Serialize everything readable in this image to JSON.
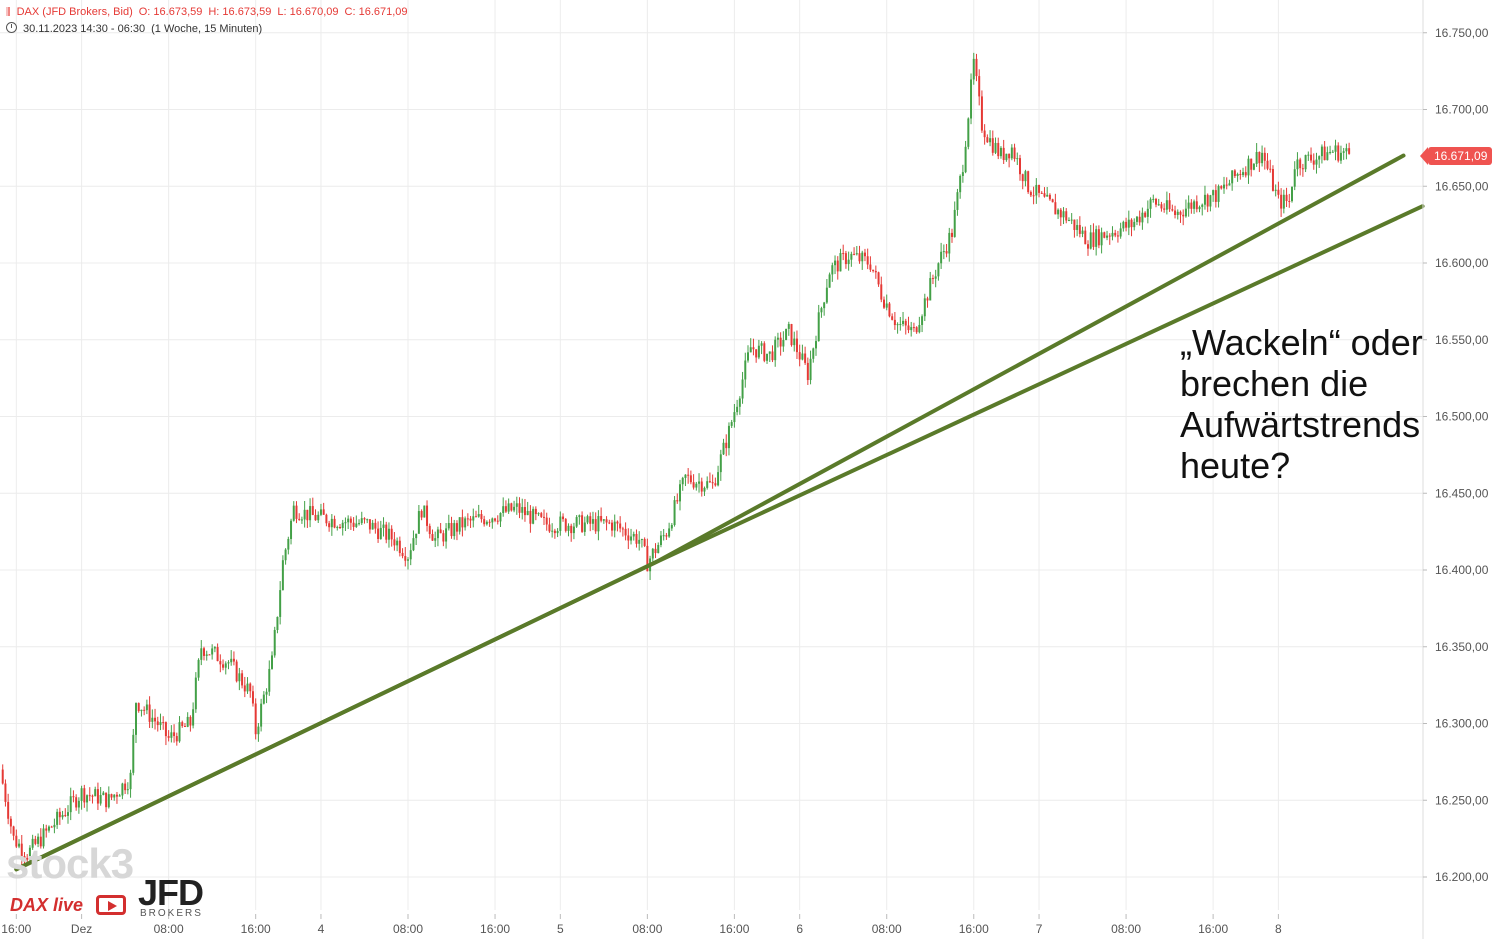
{
  "header": {
    "instrument": "DAX (JFD Brokers, Bid)",
    "open": "O: 16.673,59",
    "high": "H: 16.673,59",
    "low": "L: 16.670,09",
    "close": "C: 16.671,09",
    "range": "30.11.2023 14:30 - 06:30",
    "interval": "(1 Woche, 15 Minuten)"
  },
  "annotation": "„Wackeln“ oder brechen die Aufwärtstrends heute?",
  "last_price_label": "16.671,09",
  "watermarks": {
    "stock3": "stock3",
    "dax_live": "DAX live",
    "jfd": "JFD",
    "brokers": "BROKERS"
  },
  "colors": {
    "up": "#43a047",
    "down": "#e53935",
    "trendline": "#5a7a2a",
    "grid": "#ececec",
    "price_tag": "#ef5350"
  },
  "chart_data": {
    "type": "candlestick",
    "y_axis": {
      "min": 16180,
      "max": 16760,
      "tick_values": [
        16200,
        16250,
        16300,
        16350,
        16400,
        16450,
        16500,
        16550,
        16600,
        16650,
        16700,
        16750
      ],
      "tick_labels": [
        "16.200,00",
        "16.250,00",
        "16.300,00",
        "16.350,00",
        "16.400,00",
        "16.450,00",
        "16.500,00",
        "16.550,00",
        "16.600,00",
        "16.650,00",
        "16.700,00",
        "16.750,00"
      ]
    },
    "x_axis": {
      "tick_labels": [
        "16:00",
        "Dez",
        "08:00",
        "16:00",
        "4",
        "08:00",
        "16:00",
        "5",
        "08:00",
        "16:00",
        "6",
        "08:00",
        "16:00",
        "7",
        "08:00",
        "16:00",
        "8"
      ],
      "tick_candle_index": [
        6,
        30,
        62,
        94,
        118,
        150,
        182,
        206,
        238,
        270,
        294,
        326,
        358,
        382,
        414,
        446,
        470
      ]
    },
    "close_path": [
      [
        0,
        16270
      ],
      [
        5,
        16225
      ],
      [
        10,
        16215
      ],
      [
        20,
        16235
      ],
      [
        30,
        16255
      ],
      [
        40,
        16250
      ],
      [
        48,
        16265
      ],
      [
        50,
        16315
      ],
      [
        58,
        16300
      ],
      [
        62,
        16290
      ],
      [
        70,
        16300
      ],
      [
        74,
        16350
      ],
      [
        84,
        16340
      ],
      [
        92,
        16320
      ],
      [
        94,
        16295
      ],
      [
        100,
        16340
      ],
      [
        104,
        16405
      ],
      [
        108,
        16440
      ],
      [
        115,
        16435
      ],
      [
        125,
        16432
      ],
      [
        135,
        16430
      ],
      [
        145,
        16420
      ],
      [
        150,
        16410
      ],
      [
        155,
        16440
      ],
      [
        160,
        16420
      ],
      [
        170,
        16430
      ],
      [
        180,
        16435
      ],
      [
        190,
        16440
      ],
      [
        200,
        16430
      ],
      [
        212,
        16430
      ],
      [
        225,
        16430
      ],
      [
        235,
        16420
      ],
      [
        238,
        16405
      ],
      [
        245,
        16425
      ],
      [
        252,
        16460
      ],
      [
        262,
        16455
      ],
      [
        268,
        16490
      ],
      [
        276,
        16545
      ],
      [
        283,
        16540
      ],
      [
        290,
        16555
      ],
      [
        294,
        16540
      ],
      [
        297,
        16528
      ],
      [
        300,
        16555
      ],
      [
        305,
        16595
      ],
      [
        312,
        16605
      ],
      [
        320,
        16600
      ],
      [
        324,
        16580
      ],
      [
        330,
        16560
      ],
      [
        336,
        16555
      ],
      [
        340,
        16575
      ],
      [
        345,
        16600
      ],
      [
        350,
        16620
      ],
      [
        354,
        16665
      ],
      [
        358,
        16730
      ],
      [
        361,
        16690
      ],
      [
        364,
        16680
      ],
      [
        368,
        16670
      ],
      [
        372,
        16675
      ],
      [
        378,
        16650
      ],
      [
        384,
        16640
      ],
      [
        392,
        16630
      ],
      [
        400,
        16615
      ],
      [
        408,
        16620
      ],
      [
        416,
        16625
      ],
      [
        424,
        16640
      ],
      [
        432,
        16632
      ],
      [
        440,
        16640
      ],
      [
        448,
        16645
      ],
      [
        456,
        16660
      ],
      [
        464,
        16672
      ],
      [
        470,
        16640
      ],
      [
        474,
        16640
      ],
      [
        476,
        16665
      ],
      [
        482,
        16668
      ],
      [
        490,
        16673
      ],
      [
        496,
        16671
      ]
    ],
    "trendlines": [
      {
        "name": "steep",
        "points": [
          [
            "2023-11-30 16:00",
            16205
          ],
          [
            "2023-12-05 09:00",
            16405
          ],
          [
            "2023-12-08 09:30",
            16670
          ]
        ]
      },
      {
        "name": "flat",
        "points": [
          [
            "2023-11-30 16:00",
            16205
          ],
          [
            "2023-12-05 09:00",
            16405
          ],
          [
            "2023-12-08 12:30",
            16637
          ]
        ]
      }
    ],
    "last_close": 16671.09
  }
}
